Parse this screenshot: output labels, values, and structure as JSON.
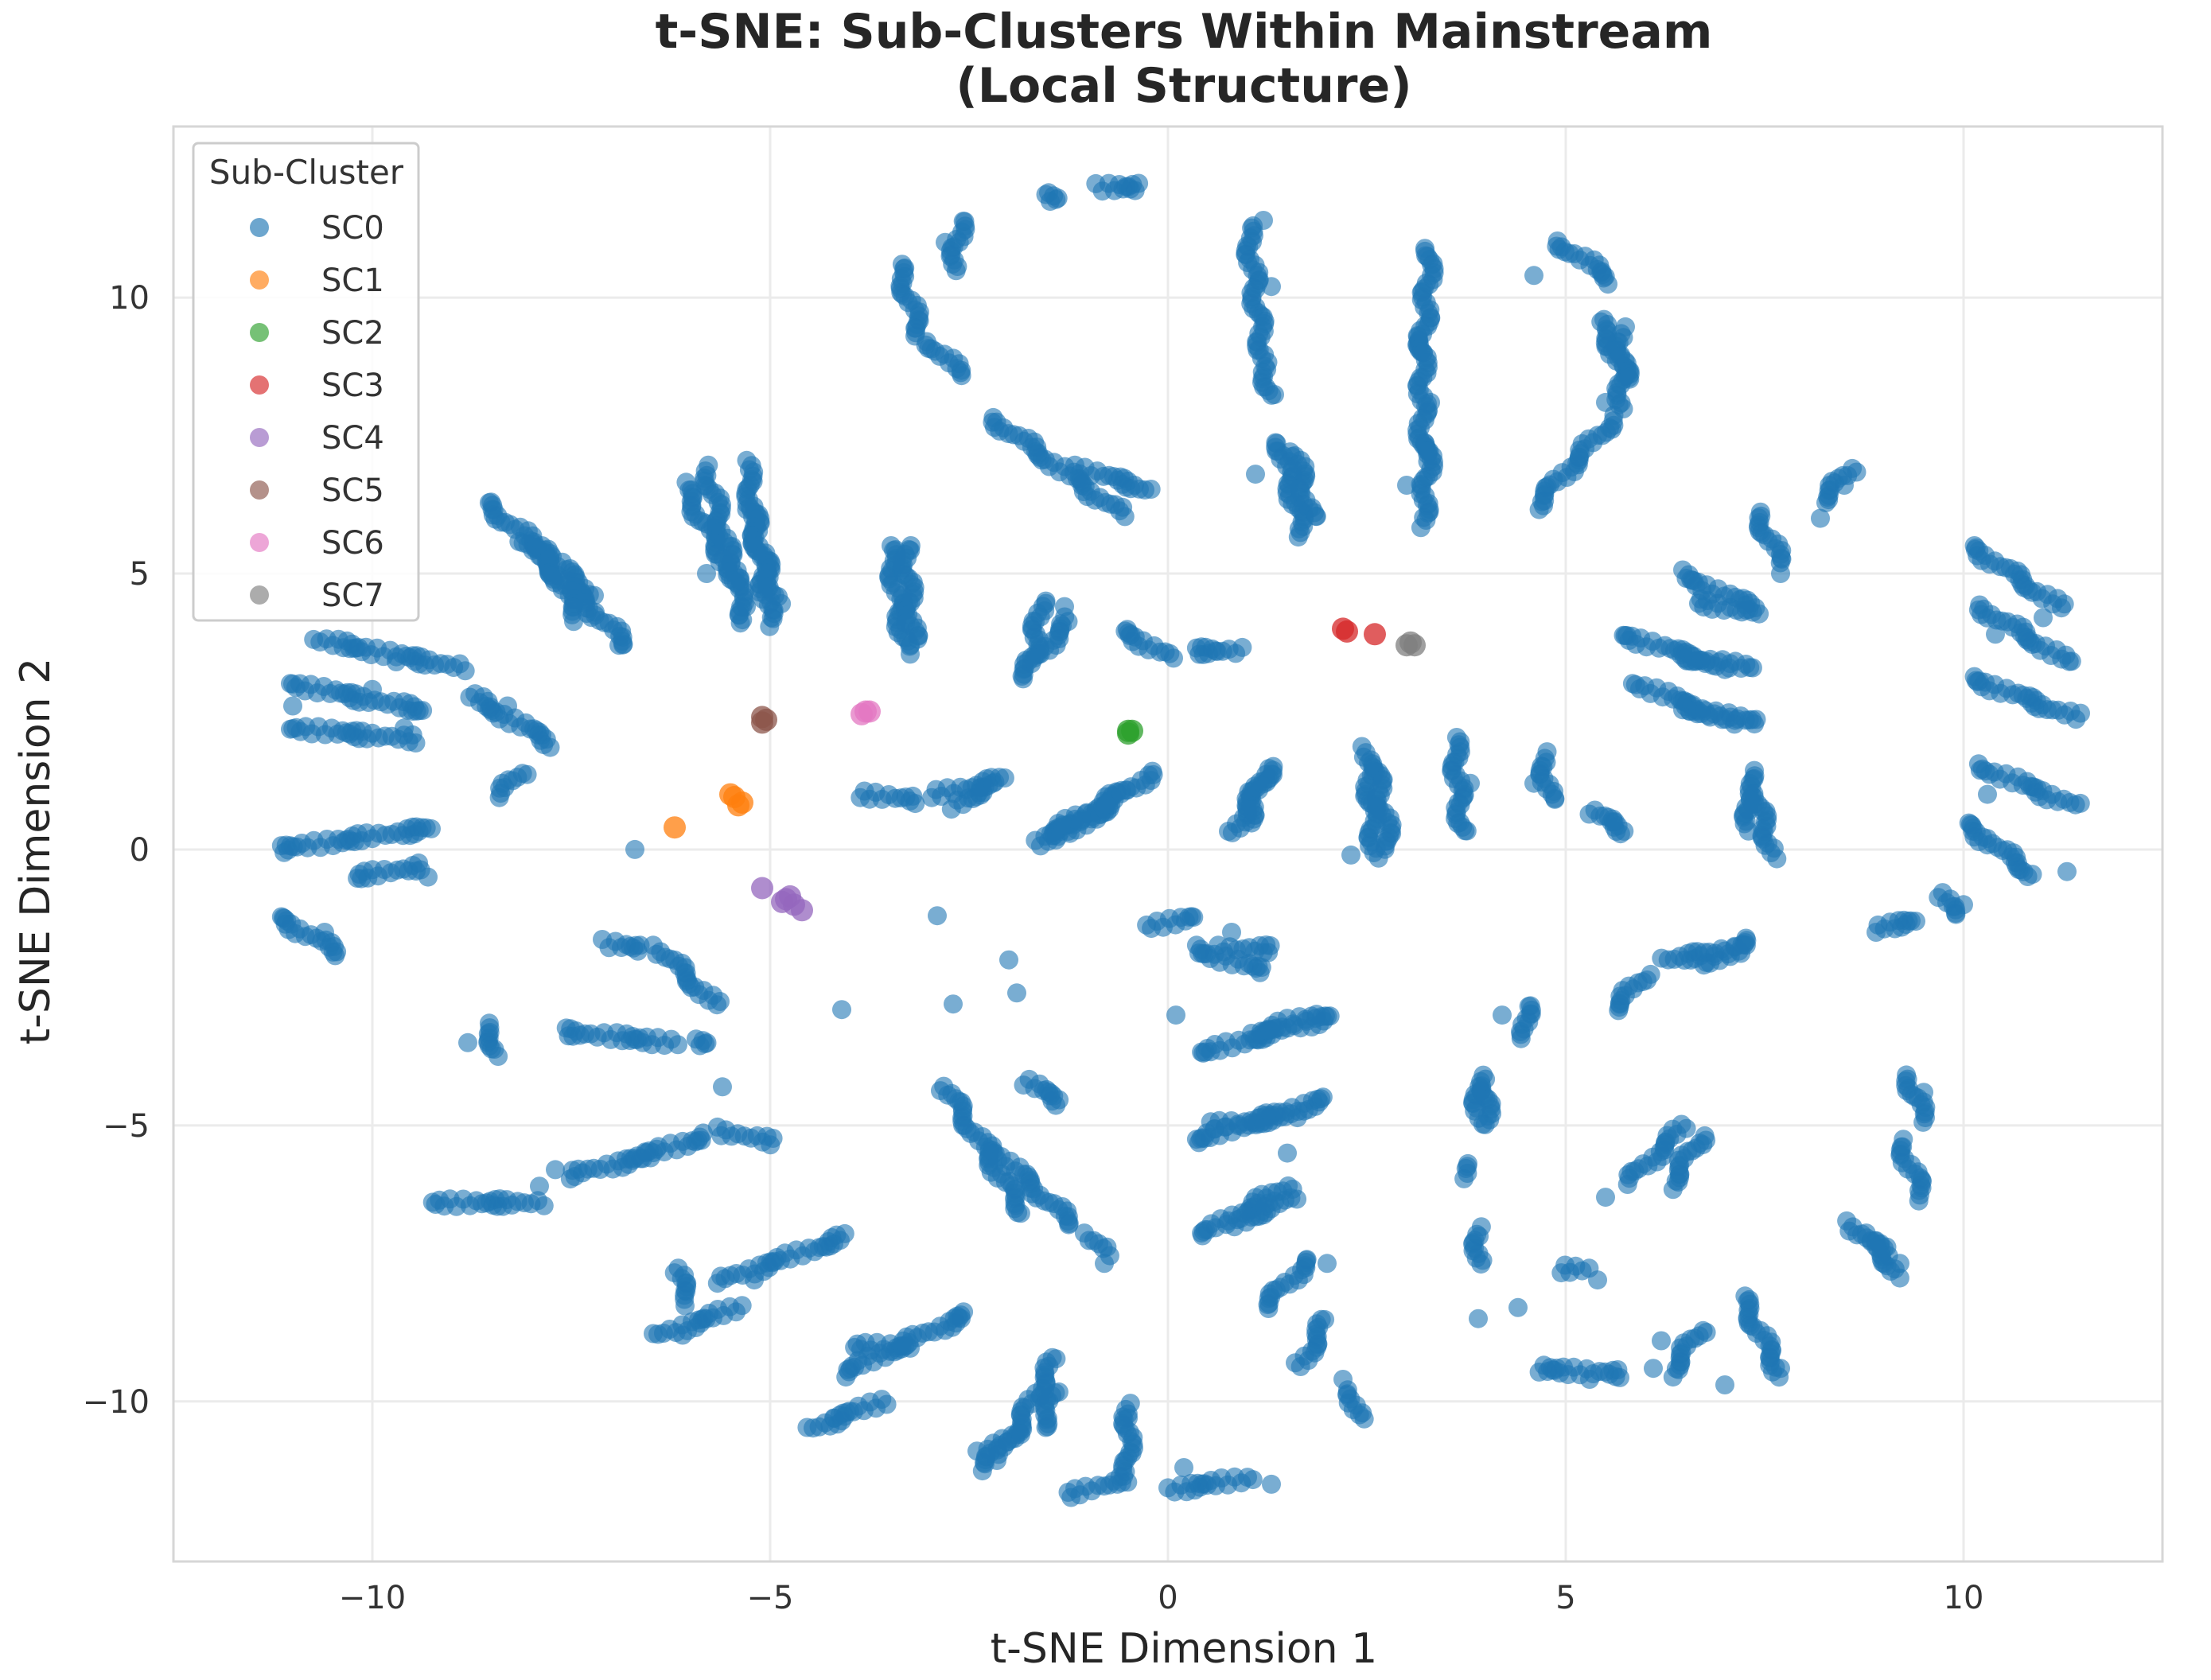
{
  "chart_data": {
    "type": "scatter",
    "title_line1": "t-SNE: Sub-Clusters Within Mainstream",
    "title_line2": "(Local Structure)",
    "xlabel": "t-SNE Dimension 1",
    "ylabel": "t-SNE Dimension 2",
    "xlim": [
      -12.5,
      12.5
    ],
    "ylim": [
      -12.9,
      13.1
    ],
    "xticks": [
      -10,
      -5,
      0,
      5,
      10
    ],
    "yticks": [
      -10,
      -5,
      0,
      5,
      10
    ],
    "xtick_labels": [
      "−10",
      "−5",
      "0",
      "5",
      "10"
    ],
    "ytick_labels": [
      "−10",
      "−5",
      "0",
      "5",
      "10"
    ],
    "grid": true,
    "legend": {
      "title": "Sub-Cluster",
      "placement": "top-left",
      "entries": [
        "SC0",
        "SC1",
        "SC2",
        "SC3",
        "SC4",
        "SC5",
        "SC6",
        "SC7"
      ]
    },
    "colors": [
      "#1f77b4",
      "#ff7f0e",
      "#2ca02c",
      "#d62728",
      "#9467bd",
      "#8c564b",
      "#e377c2",
      "#7f7f7f"
    ],
    "series": [
      {
        "name": "SC0",
        "segments": [
          [
            -11.2,
            0,
            -9.2,
            0.4
          ],
          [
            -11.2,
            -1.2,
            -10.4,
            -1.9
          ],
          [
            -11,
            2.2,
            -9.5,
            2.0
          ],
          [
            -11,
            3.0,
            -9.3,
            2.5
          ],
          [
            -10.7,
            3.8,
            -8.9,
            3.3
          ],
          [
            -10.2,
            -0.5,
            -9.4,
            -0.3
          ],
          [
            -8.6,
            6.3,
            -7.2,
            4.6
          ],
          [
            -8.1,
            5.6,
            -6.8,
            3.7
          ],
          [
            -7.9,
            5.5,
            -7.4,
            4.2
          ],
          [
            -8.8,
            2.8,
            -7.7,
            1.9
          ],
          [
            -8.4,
            1.0,
            -8.1,
            1.4
          ],
          [
            -6.1,
            6.6,
            -5.4,
            4.8
          ],
          [
            -5.8,
            6.9,
            -5.3,
            4.1
          ],
          [
            -5.3,
            7.0,
            -5.0,
            4.1
          ],
          [
            -5.3,
            6.2,
            -4.9,
            4.5
          ],
          [
            -3.4,
            10.6,
            -3.1,
            9.3
          ],
          [
            -3.0,
            9.2,
            -2.6,
            8.6
          ],
          [
            -2.6,
            11.4,
            -2.7,
            10.5
          ],
          [
            -1.6,
            11.8,
            -1.4,
            11.8
          ],
          [
            -0.9,
            12.0,
            -0.3,
            12.0
          ],
          [
            -2.2,
            7.8,
            -0.6,
            6.1
          ],
          [
            -1.1,
            6.9,
            -0.2,
            6.5
          ],
          [
            -3.5,
            5.5,
            -3.3,
            3.6
          ],
          [
            -3.3,
            5.5,
            -3.2,
            3.8
          ],
          [
            -1.6,
            4.5,
            -1.7,
            3.4
          ],
          [
            -1.2,
            4.2,
            -1.9,
            3.1
          ],
          [
            -0.6,
            4.0,
            0.0,
            3.5
          ],
          [
            0.3,
            3.6,
            0.9,
            3.6
          ],
          [
            -3.8,
            1.0,
            -3.2,
            0.9
          ],
          [
            -2.9,
            1.0,
            -2.0,
            1.3
          ],
          [
            -2.7,
            0.8,
            -2.3,
            1.1
          ],
          [
            -1.7,
            0.1,
            -0.5,
            1.1
          ],
          [
            -1.2,
            0.3,
            -0.2,
            1.4
          ],
          [
            -1.5,
            0.2,
            -0.8,
            0.8
          ],
          [
            1.0,
            11.3,
            1.2,
            8.9
          ],
          [
            1.2,
            8.8,
            1.3,
            8.2
          ],
          [
            1.4,
            7.4,
            1.7,
            5.7
          ],
          [
            1.6,
            7.2,
            1.8,
            6.0
          ],
          [
            3.3,
            10.9,
            3.2,
            9.0
          ],
          [
            3.2,
            9.3,
            3.2,
            7.1
          ],
          [
            3.3,
            7.4,
            3.2,
            5.9
          ],
          [
            4.6,
            6.2,
            5.6,
            7.8
          ],
          [
            5.7,
            8.0,
            5.7,
            9.4
          ],
          [
            4.9,
            11.0,
            5.6,
            10.3
          ],
          [
            5.4,
            9.6,
            5.8,
            8.5
          ],
          [
            0.8,
            0.3,
            1.3,
            1.5
          ],
          [
            1.0,
            0.5,
            1.2,
            1.4
          ],
          [
            2.5,
            1.8,
            2.6,
            -0.1
          ],
          [
            2.6,
            1.5,
            2.8,
            0.0
          ],
          [
            3.6,
            2.0,
            3.7,
            0.3
          ],
          [
            4.7,
            1.7,
            4.8,
            0.9
          ],
          [
            5.3,
            0.7,
            5.8,
            0.3
          ],
          [
            7.3,
            1.4,
            7.6,
            -0.1
          ],
          [
            7.3,
            1.0,
            7.3,
            0.4
          ],
          [
            5.7,
            3.9,
            7.0,
            3.3
          ],
          [
            6.4,
            3.5,
            7.3,
            3.3
          ],
          [
            6.4,
            5.0,
            7.5,
            4.3
          ],
          [
            6.7,
            4.5,
            7.2,
            4.3
          ],
          [
            5.9,
            3.0,
            7.1,
            2.3
          ],
          [
            6.4,
            2.6,
            7.4,
            2.3
          ],
          [
            7.4,
            6.1,
            7.7,
            5.2
          ],
          [
            8.2,
            6.3,
            8.6,
            6.9
          ],
          [
            10.1,
            5.5,
            11.2,
            4.4
          ],
          [
            10.2,
            4.4,
            11.3,
            3.4
          ],
          [
            10.1,
            3.1,
            11.4,
            2.4
          ],
          [
            10.2,
            1.5,
            11.4,
            0.8
          ],
          [
            10.0,
            0.5,
            10.9,
            -0.5
          ],
          [
            9.7,
            -0.8,
            9.9,
            -1.2
          ],
          [
            8.9,
            -1.4,
            9.4,
            -1.3
          ],
          [
            -7.1,
            -1.7,
            -6.6,
            -1.8
          ],
          [
            -6.4,
            -1.8,
            -5.7,
            -2.8
          ],
          [
            -8.6,
            -3.2,
            -8.4,
            -3.7
          ],
          [
            -7.6,
            -3.3,
            -6.2,
            -3.5
          ],
          [
            -6.0,
            -3.5,
            -5.8,
            -3.5
          ],
          [
            -9.2,
            -6.4,
            -7.9,
            -6.4
          ],
          [
            -7.5,
            -5.9,
            -6.4,
            -5.5
          ],
          [
            -6.5,
            -5.5,
            -5.8,
            -5.2
          ],
          [
            -5.6,
            -5.1,
            -5.0,
            -5.3
          ],
          [
            -6.2,
            -7.6,
            -6.0,
            -8.2
          ],
          [
            -6.4,
            -8.8,
            -5.4,
            -8.3
          ],
          [
            -5.6,
            -7.8,
            -4.0,
            -7.0
          ],
          [
            -4.5,
            -10.5,
            -3.6,
            -10.0
          ],
          [
            -4.1,
            -9.5,
            -2.5,
            -8.4
          ],
          [
            -3.9,
            -9.0,
            -3.3,
            -9.0
          ],
          [
            -2.8,
            -4.3,
            -1.8,
            -6.6
          ],
          [
            -2.2,
            -5.4,
            -1.2,
            -6.8
          ],
          [
            -1.8,
            -4.2,
            -1.3,
            -4.6
          ],
          [
            -1.0,
            -7.0,
            -0.8,
            -7.3
          ],
          [
            -2.4,
            -11.2,
            -1.9,
            -10.5
          ],
          [
            -2.1,
            -11.0,
            -1.4,
            -9.2
          ],
          [
            -1.6,
            -10.5,
            -1.4,
            -9.8
          ],
          [
            -1.2,
            -11.7,
            -0.6,
            -11.4
          ],
          [
            -0.5,
            -10.1,
            -0.5,
            -11.4
          ],
          [
            0.0,
            -11.6,
            1.0,
            -11.4
          ],
          [
            -0.2,
            -1.4,
            0.3,
            -1.2
          ],
          [
            0.3,
            -1.8,
            1.2,
            -2.2
          ],
          [
            0.7,
            -1.8,
            1.3,
            -1.8
          ],
          [
            0.4,
            -3.7,
            2.1,
            -3.0
          ],
          [
            1.0,
            -3.4,
            1.8,
            -3.0
          ],
          [
            0.3,
            -5.3,
            2.0,
            -4.5
          ],
          [
            0.6,
            -5.0,
            1.7,
            -4.8
          ],
          [
            0.4,
            -7.0,
            1.5,
            -6.1
          ],
          [
            0.8,
            -6.8,
            1.6,
            -6.3
          ],
          [
            1.2,
            -8.3,
            1.8,
            -7.4
          ],
          [
            1.7,
            -9.3,
            2.0,
            -8.5
          ],
          [
            2.3,
            -9.8,
            2.4,
            -10.3
          ],
          [
            3.9,
            -4.3,
            3.9,
            -4.8
          ],
          [
            4.5,
            -2.8,
            4.5,
            -3.4
          ],
          [
            4.0,
            -4.1,
            4.0,
            -5.0
          ],
          [
            3.7,
            -5.7,
            3.7,
            -5.9
          ],
          [
            3.9,
            -6.9,
            3.9,
            -7.5
          ],
          [
            5.6,
            -2.9,
            6.0,
            -2.3
          ],
          [
            6.8,
            -2.1,
            7.3,
            -1.6
          ],
          [
            6.2,
            -2.0,
            7.2,
            -1.8
          ],
          [
            5.8,
            -6.0,
            6.5,
            -5.0
          ],
          [
            6.3,
            -6.1,
            6.7,
            -5.2
          ],
          [
            6.3,
            -9.5,
            6.7,
            -8.7
          ],
          [
            4.6,
            -9.4,
            5.7,
            -9.5
          ],
          [
            5.0,
            -7.6,
            5.3,
            -7.6
          ],
          [
            7.2,
            -8.1,
            7.7,
            -9.5
          ],
          [
            8.6,
            -6.8,
            9.2,
            -7.7
          ],
          [
            8.8,
            -7.0,
            9.0,
            -7.3
          ],
          [
            9.2,
            -5.3,
            9.5,
            -6.3
          ],
          [
            9.3,
            -4.1,
            9.5,
            -4.9
          ]
        ],
        "isolated": [
          [
            -9.3,
            -0.5
          ],
          [
            -10.6,
            -1.5
          ],
          [
            -8.3,
            2.6
          ],
          [
            -6.9,
            3.7
          ],
          [
            -7.2,
            4.3
          ],
          [
            -5.8,
            5.0
          ],
          [
            -5.3,
            4.4
          ],
          [
            -3.3,
            4.1
          ],
          [
            -2.8,
            11.0
          ],
          [
            -1.5,
            11.9
          ],
          [
            -2.2,
            1.2
          ],
          [
            -1.3,
            4.4
          ],
          [
            0.6,
            3.6
          ],
          [
            1.2,
            11.4
          ],
          [
            1.3,
            10.2
          ],
          [
            1.1,
            6.8
          ],
          [
            3.3,
            8.1
          ],
          [
            3.0,
            6.6
          ],
          [
            4.6,
            10.4
          ],
          [
            5.5,
            8.1
          ],
          [
            2.3,
            -0.1
          ],
          [
            3.8,
            1.2
          ],
          [
            4.6,
            1.2
          ],
          [
            5.6,
            0.5
          ],
          [
            7.3,
            0.7
          ],
          [
            7.7,
            5.0
          ],
          [
            8.2,
            6.0
          ],
          [
            8.5,
            6.6
          ],
          [
            10.4,
            3.9
          ],
          [
            10.3,
            1.0
          ],
          [
            10.3,
            0.2
          ],
          [
            11.0,
            4.2
          ],
          [
            11.3,
            -0.4
          ],
          [
            9.4,
            -1.3
          ],
          [
            10.0,
            -1.0
          ],
          [
            8.9,
            -1.5
          ],
          [
            -6.7,
            0.0
          ],
          [
            -4.1,
            -2.9
          ],
          [
            -2.9,
            -1.2
          ],
          [
            -2.7,
            -2.8
          ],
          [
            -2.0,
            -2.0
          ],
          [
            -1.9,
            -2.6
          ],
          [
            -5.6,
            -4.3
          ],
          [
            -7.7,
            -5.8
          ],
          [
            -6.6,
            -5.6
          ],
          [
            -6.1,
            -8.8
          ],
          [
            -5.2,
            -7.8
          ],
          [
            -4.2,
            -10.3
          ],
          [
            -2.6,
            -8.5
          ],
          [
            -2.4,
            -10.9
          ],
          [
            -1.6,
            -9.9
          ],
          [
            -0.8,
            -7.5
          ],
          [
            -0.5,
            -10.3
          ],
          [
            1.3,
            -11.5
          ],
          [
            0.2,
            -11.2
          ],
          [
            0.1,
            -3.0
          ],
          [
            0.8,
            -1.5
          ],
          [
            1.5,
            -5.5
          ],
          [
            2.0,
            -7.5
          ],
          [
            1.6,
            -9.3
          ],
          [
            2.2,
            -9.6
          ],
          [
            3.9,
            -8.5
          ],
          [
            4.4,
            -8.3
          ],
          [
            5.4,
            -7.8
          ],
          [
            5.5,
            -6.3
          ],
          [
            7.0,
            -9.7
          ],
          [
            7.7,
            -9.4
          ],
          [
            8.9,
            -7.2
          ],
          [
            9.5,
            -4.4
          ],
          [
            9.2,
            -7.5
          ],
          [
            6.2,
            -8.9
          ],
          [
            4.2,
            -3.0
          ],
          [
            5.3,
            -9.6
          ],
          [
            6.1,
            -9.4
          ],
          [
            -7.9,
            -6.1
          ],
          [
            -8.8,
            -3.5
          ],
          [
            -10.0,
            2.9
          ],
          [
            -9.7,
            3.4
          ],
          [
            -11.0,
            2.6
          ],
          [
            -9.6,
            2.2
          ]
        ]
      },
      {
        "name": "SC1",
        "points": [
          [
            -6.2,
            0.4
          ],
          [
            -5.5,
            1.0
          ],
          [
            -5.4,
            0.8
          ],
          [
            -5.35,
            0.85
          ],
          [
            -5.45,
            0.95
          ]
        ]
      },
      {
        "name": "SC2",
        "points": [
          [
            -0.5,
            2.1
          ],
          [
            -0.45,
            2.15
          ],
          [
            -0.5,
            2.15
          ]
        ]
      },
      {
        "name": "SC3",
        "points": [
          [
            2.2,
            4.0
          ],
          [
            2.25,
            3.95
          ],
          [
            2.6,
            3.9
          ]
        ]
      },
      {
        "name": "SC4",
        "points": [
          [
            -5.1,
            -0.7
          ],
          [
            -4.8,
            -0.9
          ],
          [
            -4.7,
            -1.0
          ],
          [
            -4.6,
            -1.1
          ],
          [
            -4.75,
            -0.85
          ],
          [
            -4.85,
            -0.95
          ]
        ]
      },
      {
        "name": "SC5",
        "points": [
          [
            -5.1,
            2.4
          ],
          [
            -5.05,
            2.35
          ],
          [
            -5.1,
            2.3
          ]
        ]
      },
      {
        "name": "SC6",
        "points": [
          [
            -3.8,
            2.5
          ],
          [
            -3.75,
            2.5
          ],
          [
            -3.85,
            2.45
          ]
        ]
      },
      {
        "name": "SC7",
        "points": [
          [
            3.05,
            3.75
          ],
          [
            3.0,
            3.7
          ],
          [
            3.1,
            3.7
          ]
        ]
      }
    ]
  }
}
